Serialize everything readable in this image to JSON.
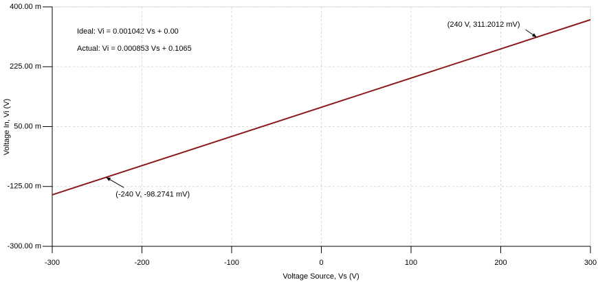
{
  "chart_data": {
    "type": "line",
    "x_label": "Voltage Source, Vs (V)",
    "y_label": "Voltage In, Vi (V)",
    "x": [
      -300,
      300
    ],
    "series": [
      {
        "name": "Actual",
        "color": "#8b1a1a",
        "values": [
          -0.1494,
          0.3624
        ]
      }
    ],
    "xlim": [
      -300,
      300
    ],
    "xticks": [
      -300,
      -200,
      -100,
      0,
      100,
      200,
      300
    ],
    "ylim": [
      -0.3,
      0.4
    ],
    "yticks": [
      {
        "value": -0.3,
        "label": "-300.00 m"
      },
      {
        "value": -0.125,
        "label": "-125.00 m"
      },
      {
        "value": 0.05,
        "label": "50.00 m"
      },
      {
        "value": 0.225,
        "label": "225.00 m"
      },
      {
        "value": 0.4,
        "label": "400.00 m"
      }
    ],
    "grid": true,
    "equations": [
      "Ideal: Vi = 0.001042 Vs + 0.00",
      "Actual: Vi = 0.000853 Vs + 0.1065"
    ],
    "annotations": [
      {
        "text": "(-240 V, -98.2741 mV)",
        "x": -240,
        "y": -0.0982741
      },
      {
        "text": "(240 V, 311.2012 mV)",
        "x": 240,
        "y": 0.3112012
      }
    ]
  }
}
